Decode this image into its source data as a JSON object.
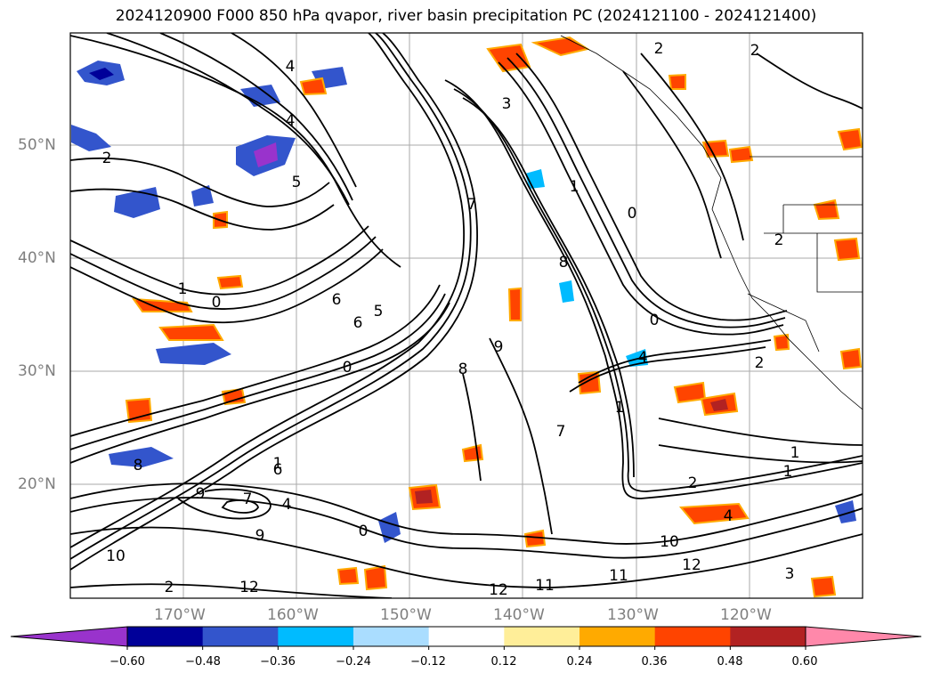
{
  "title": "2024120900 F000 850 hPa qvapor, river basin precipitation PC (2024121100 - 2024121400)",
  "map": {
    "lat_labels": [
      "50°N",
      "40°N",
      "30°N",
      "20°N"
    ],
    "lon_labels": [
      "170°W",
      "160°W",
      "150°W",
      "140°W",
      "130°W",
      "120°W"
    ],
    "contour_labels": [
      "4",
      "4",
      "2",
      "2",
      "3",
      "2",
      "5",
      "7",
      "1",
      "0",
      "1",
      "0",
      "6",
      "6",
      "5",
      "8",
      "9",
      "0",
      "0",
      "8",
      "7",
      "4",
      "1",
      "2",
      "1",
      "8",
      "9",
      "2",
      "1",
      "6",
      "7",
      "9",
      "0",
      "4",
      "10",
      "12",
      "12",
      "11",
      "11",
      "10",
      "12",
      "3",
      "2",
      "1",
      "2",
      "4"
    ]
  },
  "colorbar": {
    "colors": [
      "#9933cc",
      "#000099",
      "#3355cc",
      "#00bbff",
      "#aaddff",
      "#ffffff",
      "#ffee99",
      "#ffaa00",
      "#ff4400",
      "#b22222",
      "#ff88aa"
    ],
    "tick_labels": [
      "−0.60",
      "−0.48",
      "−0.36",
      "−0.24",
      "−0.12",
      "0.12",
      "0.24",
      "0.36",
      "0.48",
      "0.60"
    ]
  }
}
